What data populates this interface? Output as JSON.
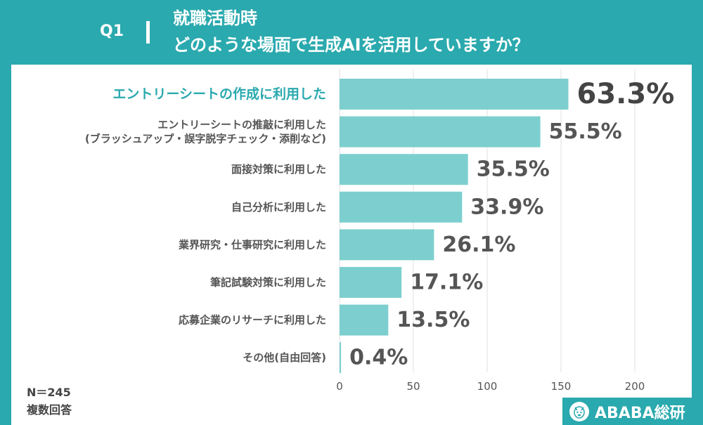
{
  "header": {
    "question": "Q1",
    "title_line1": "就職活動時",
    "title_line2": "どのような場面で生成AIを活用していますか？"
  },
  "footnotes": {
    "sample_size": "N＝245",
    "answer_type": "複数回答"
  },
  "brand": {
    "name": "ABABA総研"
  },
  "colors": {
    "accent": "#2aa9ae",
    "bar": "#7dcfcf",
    "text": "#555555"
  },
  "chart_data": {
    "type": "bar",
    "orientation": "horizontal",
    "categories": [
      [
        "エントリーシートの作成に利用した"
      ],
      [
        "エントリーシートの推敲に利用した",
        "(ブラッシュアップ・誤字脱字チェック・添削など)"
      ],
      [
        "面接対策に利用した"
      ],
      [
        "自己分析に利用した"
      ],
      [
        "業界研究・仕事研究に利用した"
      ],
      [
        "筆記試験対策に利用した"
      ],
      [
        "応募企業のリサーチに利用した"
      ],
      [
        "その他(自由回答)"
      ]
    ],
    "values": [
      155,
      136,
      87,
      83,
      64,
      42,
      33,
      1
    ],
    "value_labels": [
      "63.3%",
      "55.5%",
      "35.5%",
      "33.9%",
      "26.1%",
      "17.1%",
      "13.5%",
      "0.4%"
    ],
    "highlight_index": 0,
    "xlim": [
      0,
      200
    ],
    "xticks": [
      "0",
      "50",
      "100",
      "150",
      "200"
    ],
    "grid": true
  }
}
